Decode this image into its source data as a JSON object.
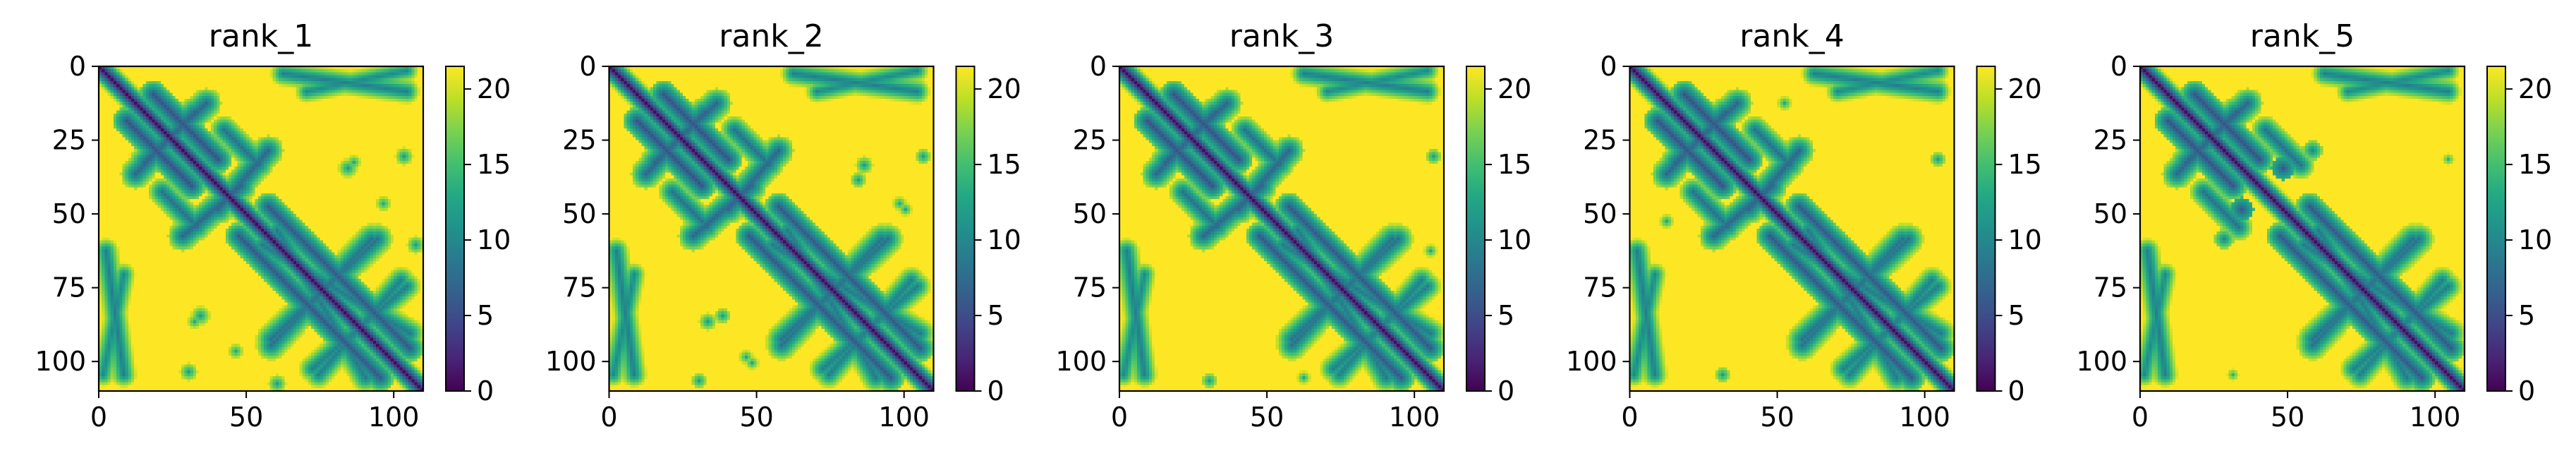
{
  "chart_data": [
    {
      "type": "heatmap",
      "title": "rank_1",
      "colormap": "viridis",
      "n": 110,
      "xticks": [
        0,
        50,
        100
      ],
      "yticks": [
        0,
        25,
        50,
        75,
        100
      ],
      "xlim": [
        0,
        110
      ],
      "ylim": [
        110,
        0
      ],
      "colorbar": {
        "ticks": [
          0,
          5,
          10,
          15,
          20
        ],
        "range": [
          0,
          21.5
        ]
      },
      "features": {
        "stripes": [
          {
            "from": [
              18,
              9
            ],
            "to": [
              40,
              31
            ],
            "dist": 5.5,
            "half": 2.2
          },
          {
            "from": [
              57,
              47
            ],
            "to": [
              105,
              95
            ],
            "dist": 6,
            "half": 2.2
          },
          {
            "from": [
              15,
              32
            ],
            "to": [
              36,
              12
            ],
            "dist": 7,
            "half": 2.3
          },
          {
            "from": [
              40,
              48
            ],
            "to": [
              57,
              28
            ],
            "dist": 7,
            "half": 2.3
          },
          {
            "from": [
              21,
              42
            ],
            "to": [
              33,
              54
            ],
            "dist": 8,
            "half": 2.2
          },
          {
            "from": [
              55,
              60
            ],
            "to": [
              105,
              90
            ],
            "dist": 8.5,
            "half": 2.3
          },
          {
            "from": [
              58,
              92
            ],
            "to": [
              94,
              58
            ],
            "dist": 8,
            "half": 2.4
          },
          {
            "from": [
              72,
              102
            ],
            "to": [
              104,
              74
            ],
            "dist": 9,
            "half": 2.2
          },
          {
            "from": [
              2,
              62
            ],
            "to": [
              8,
              104
            ],
            "dist": 9,
            "half": 2.0
          },
          {
            "from": [
              70,
              8
            ],
            "to": [
              104,
              1
            ],
            "dist": 10,
            "half": 2.0
          }
        ],
        "dots": [
          {
            "at": [
              84,
              34
            ],
            "r": 1.6,
            "dist": 12
          },
          {
            "at": [
              96,
              46
            ],
            "r": 1.4,
            "dist": 13
          },
          {
            "at": [
              103,
              30
            ],
            "r": 1.5,
            "dist": 12
          },
          {
            "at": [
              32,
              86
            ],
            "r": 1.3,
            "dist": 13
          },
          {
            "at": [
              60,
              107
            ],
            "r": 1.5,
            "dist": 12
          }
        ]
      }
    },
    {
      "type": "heatmap",
      "title": "rank_2",
      "colormap": "viridis",
      "n": 110,
      "xticks": [
        0,
        50,
        100
      ],
      "yticks": [
        0,
        25,
        50,
        75,
        100
      ],
      "xlim": [
        0,
        110
      ],
      "ylim": [
        110,
        0
      ],
      "colorbar": {
        "ticks": [
          0,
          5,
          10,
          15,
          20
        ],
        "range": [
          0,
          21.5
        ]
      },
      "features": {
        "stripes": [
          {
            "from": [
              18,
              9
            ],
            "to": [
              40,
              31
            ],
            "dist": 5.5,
            "half": 2.2
          },
          {
            "from": [
              57,
              47
            ],
            "to": [
              105,
              95
            ],
            "dist": 6,
            "half": 2.2
          },
          {
            "from": [
              15,
              32
            ],
            "to": [
              36,
              12
            ],
            "dist": 7,
            "half": 2.3
          },
          {
            "from": [
              40,
              48
            ],
            "to": [
              57,
              28
            ],
            "dist": 7,
            "half": 2.3
          },
          {
            "from": [
              21,
              42
            ],
            "to": [
              33,
              54
            ],
            "dist": 8,
            "half": 2.2
          },
          {
            "from": [
              55,
              60
            ],
            "to": [
              105,
              90
            ],
            "dist": 8.5,
            "half": 2.3
          },
          {
            "from": [
              58,
              92
            ],
            "to": [
              94,
              58
            ],
            "dist": 8,
            "half": 2.4
          },
          {
            "from": [
              72,
              102
            ],
            "to": [
              104,
              74
            ],
            "dist": 9,
            "half": 2.2
          },
          {
            "from": [
              2,
              62
            ],
            "to": [
              8,
              104
            ],
            "dist": 9,
            "half": 2.0
          },
          {
            "from": [
              70,
              8
            ],
            "to": [
              104,
              1
            ],
            "dist": 10,
            "half": 2.0
          }
        ],
        "dots": [
          {
            "at": [
              86,
              33
            ],
            "r": 1.5,
            "dist": 12
          },
          {
            "at": [
              98,
              46
            ],
            "r": 1.3,
            "dist": 13
          },
          {
            "at": [
              38,
              84
            ],
            "r": 1.4,
            "dist": 12
          },
          {
            "at": [
              48,
              100
            ],
            "r": 1.2,
            "dist": 13
          },
          {
            "at": [
              30,
              106
            ],
            "r": 1.4,
            "dist": 12
          }
        ]
      }
    },
    {
      "type": "heatmap",
      "title": "rank_3",
      "colormap": "viridis",
      "n": 110,
      "xticks": [
        0,
        50,
        100
      ],
      "yticks": [
        0,
        25,
        50,
        75,
        100
      ],
      "xlim": [
        0,
        110
      ],
      "ylim": [
        110,
        0
      ],
      "colorbar": {
        "ticks": [
          0,
          5,
          10,
          15,
          20
        ],
        "range": [
          0,
          21.5
        ]
      },
      "features": {
        "stripes": [
          {
            "from": [
              18,
              9
            ],
            "to": [
              40,
              31
            ],
            "dist": 5.5,
            "half": 2.2
          },
          {
            "from": [
              57,
              47
            ],
            "to": [
              105,
              95
            ],
            "dist": 6,
            "half": 2.2
          },
          {
            "from": [
              15,
              32
            ],
            "to": [
              36,
              12
            ],
            "dist": 7,
            "half": 2.3
          },
          {
            "from": [
              40,
              48
            ],
            "to": [
              57,
              28
            ],
            "dist": 7,
            "half": 2.3
          },
          {
            "from": [
              21,
              42
            ],
            "to": [
              33,
              54
            ],
            "dist": 8,
            "half": 2.2
          },
          {
            "from": [
              55,
              60
            ],
            "to": [
              105,
              90
            ],
            "dist": 8.5,
            "half": 2.3
          },
          {
            "from": [
              58,
              92
            ],
            "to": [
              94,
              58
            ],
            "dist": 8,
            "half": 2.4
          },
          {
            "from": [
              72,
              102
            ],
            "to": [
              104,
              74
            ],
            "dist": 9,
            "half": 2.2
          },
          {
            "from": [
              2,
              62
            ],
            "to": [
              8,
              104
            ],
            "dist": 9,
            "half": 2.0
          },
          {
            "from": [
              70,
              8
            ],
            "to": [
              104,
              1
            ],
            "dist": 10,
            "half": 2.0
          }
        ],
        "dots": [
          {
            "at": [
              106,
              30
            ],
            "r": 1.4,
            "dist": 12
          },
          {
            "at": [
              30,
              106
            ],
            "r": 1.4,
            "dist": 12
          },
          {
            "at": [
              62,
              105
            ],
            "r": 1.2,
            "dist": 13
          }
        ]
      }
    },
    {
      "type": "heatmap",
      "title": "rank_4",
      "colormap": "viridis",
      "n": 110,
      "xticks": [
        0,
        50,
        100
      ],
      "yticks": [
        0,
        25,
        50,
        75,
        100
      ],
      "xlim": [
        0,
        110
      ],
      "ylim": [
        110,
        0
      ],
      "colorbar": {
        "ticks": [
          0,
          5,
          10,
          15,
          20
        ],
        "range": [
          0,
          21.5
        ]
      },
      "features": {
        "stripes": [
          {
            "from": [
              18,
              9
            ],
            "to": [
              40,
              31
            ],
            "dist": 5.5,
            "half": 2.2
          },
          {
            "from": [
              57,
              47
            ],
            "to": [
              105,
              95
            ],
            "dist": 6,
            "half": 2.2
          },
          {
            "from": [
              15,
              32
            ],
            "to": [
              36,
              12
            ],
            "dist": 7,
            "half": 2.3
          },
          {
            "from": [
              40,
              48
            ],
            "to": [
              57,
              28
            ],
            "dist": 7,
            "half": 2.3
          },
          {
            "from": [
              21,
              42
            ],
            "to": [
              33,
              54
            ],
            "dist": 8,
            "half": 2.2
          },
          {
            "from": [
              55,
              60
            ],
            "to": [
              105,
              90
            ],
            "dist": 8.5,
            "half": 2.3
          },
          {
            "from": [
              58,
              92
            ],
            "to": [
              94,
              58
            ],
            "dist": 8,
            "half": 2.4
          },
          {
            "from": [
              72,
              102
            ],
            "to": [
              104,
              74
            ],
            "dist": 9,
            "half": 2.2
          },
          {
            "from": [
              2,
              62
            ],
            "to": [
              8,
              104
            ],
            "dist": 9,
            "half": 2.0
          },
          {
            "from": [
              70,
              8
            ],
            "to": [
              104,
              1
            ],
            "dist": 10,
            "half": 2.0
          }
        ],
        "dots": [
          {
            "at": [
              104,
              31
            ],
            "r": 1.4,
            "dist": 12
          },
          {
            "at": [
              31,
              104
            ],
            "r": 1.4,
            "dist": 12
          },
          {
            "at": [
              12,
              52
            ],
            "r": 1.3,
            "dist": 13
          }
        ]
      }
    },
    {
      "type": "heatmap",
      "title": "rank_5",
      "colormap": "viridis",
      "n": 110,
      "xticks": [
        0,
        50,
        100
      ],
      "yticks": [
        0,
        25,
        50,
        75,
        100
      ],
      "xlim": [
        0,
        110
      ],
      "ylim": [
        110,
        0
      ],
      "colorbar": {
        "ticks": [
          0,
          5,
          10,
          15,
          20
        ],
        "range": [
          0,
          21.5
        ]
      },
      "features": {
        "stripes": [
          {
            "from": [
              18,
              9
            ],
            "to": [
              40,
              31
            ],
            "dist": 5.5,
            "half": 2.2
          },
          {
            "from": [
              57,
              47
            ],
            "to": [
              105,
              95
            ],
            "dist": 6,
            "half": 2.2
          },
          {
            "from": [
              15,
              32
            ],
            "to": [
              36,
              12
            ],
            "dist": 7,
            "half": 2.3
          },
          {
            "from": [
              21,
              42
            ],
            "to": [
              33,
              54
            ],
            "dist": 8,
            "half": 2.2
          },
          {
            "from": [
              55,
              60
            ],
            "to": [
              105,
              90
            ],
            "dist": 8.5,
            "half": 2.3
          },
          {
            "from": [
              58,
              92
            ],
            "to": [
              94,
              58
            ],
            "dist": 8,
            "half": 2.4
          },
          {
            "from": [
              72,
              102
            ],
            "to": [
              104,
              74
            ],
            "dist": 9,
            "half": 2.2
          },
          {
            "from": [
              2,
              62
            ],
            "to": [
              8,
              104
            ],
            "dist": 9,
            "half": 2.0
          },
          {
            "from": [
              70,
              8
            ],
            "to": [
              104,
              1
            ],
            "dist": 10,
            "half": 2.0
          }
        ],
        "dots": [
          {
            "at": [
              48,
              34
            ],
            "r": 2.0,
            "dist": 6
          },
          {
            "at": [
              34,
              48
            ],
            "r": 2.0,
            "dist": 6
          },
          {
            "at": [
              56,
              46
            ],
            "r": 1.6,
            "dist": 10
          },
          {
            "at": [
              28,
              58
            ],
            "r": 1.6,
            "dist": 10
          },
          {
            "at": [
              104,
              31
            ],
            "r": 1.2,
            "dist": 14
          }
        ]
      }
    }
  ]
}
